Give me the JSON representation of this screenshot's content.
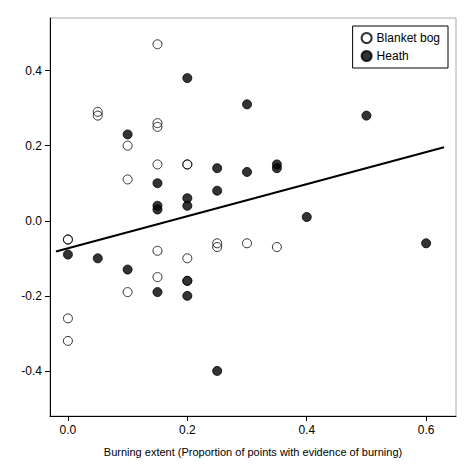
{
  "chart_data": {
    "type": "scatter",
    "xlabel": "Burning extent (Proportion of points with evidence of burning)",
    "series": [
      {
        "name": "Blanket bog",
        "type": "scatter",
        "marker": "open_circle",
        "color": "#000000",
        "x": [
          0.0,
          0.0,
          0.0,
          0.0,
          0.05,
          0.05,
          0.1,
          0.1,
          0.1,
          0.15,
          0.15,
          0.15,
          0.15,
          0.15,
          0.15,
          0.2,
          0.2,
          0.2,
          0.2,
          0.25,
          0.25,
          0.3,
          0.35
        ],
        "values": [
          -0.05,
          -0.05,
          -0.26,
          -0.32,
          0.28,
          0.29,
          0.2,
          0.11,
          -0.19,
          0.47,
          0.26,
          0.25,
          0.15,
          -0.08,
          -0.15,
          0.15,
          0.15,
          -0.1,
          -0.16,
          -0.07,
          -0.06,
          -0.06,
          -0.07
        ]
      },
      {
        "name": "Heath",
        "type": "scatter",
        "marker": "circle",
        "color": "#000000",
        "x": [
          0.0,
          0.05,
          0.1,
          0.1,
          0.15,
          0.15,
          0.15,
          0.15,
          0.2,
          0.2,
          0.2,
          0.2,
          0.2,
          0.25,
          0.25,
          0.3,
          0.3,
          0.25,
          0.35,
          0.35,
          0.4,
          0.5,
          0.6
        ],
        "values": [
          -0.09,
          -0.1,
          0.23,
          -0.13,
          0.1,
          0.04,
          0.03,
          -0.19,
          0.38,
          0.06,
          0.04,
          -0.16,
          -0.2,
          0.14,
          0.08,
          0.31,
          0.13,
          -0.4,
          0.15,
          0.14,
          0.01,
          0.28,
          -0.06
        ]
      },
      {
        "type": "line",
        "color": "#000000",
        "line_style": "solid",
        "x": [
          -0.02,
          0.63
        ],
        "values": [
          -0.082,
          0.196
        ]
      }
    ],
    "xlim": [
      -0.03,
      0.65
    ],
    "ylim": [
      -0.52,
      0.54
    ],
    "xticks": [
      {
        "value": 0.0,
        "label": "0.0"
      },
      0.2,
      0.4,
      0.6
    ],
    "yticks": [
      -0.4,
      -0.2,
      {
        "value": 0.0,
        "label": "0.0"
      },
      0.2,
      0.4
    ],
    "legend": "upper right",
    "grid": false
  }
}
